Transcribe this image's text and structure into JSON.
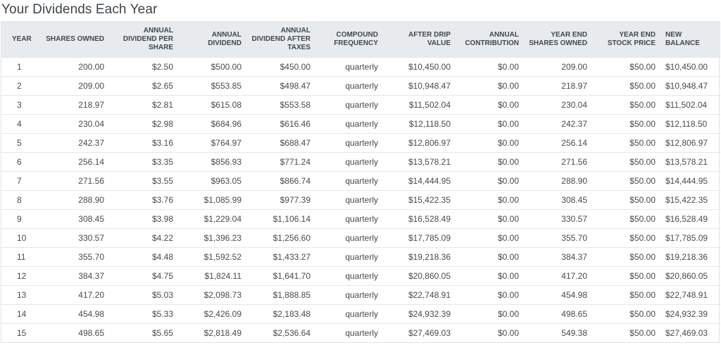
{
  "title": "Your Dividends Each Year",
  "columns": [
    {
      "key": "year",
      "label": "YEAR"
    },
    {
      "key": "shares",
      "label": "SHARES OWNED"
    },
    {
      "key": "div_per_share",
      "label": "ANNUAL DIVIDEND PER SHARE"
    },
    {
      "key": "annual_div",
      "label": "ANNUAL DIVIDEND"
    },
    {
      "key": "after_tax",
      "label": "ANNUAL DIVIDEND AFTER TAXES"
    },
    {
      "key": "compound",
      "label": "COMPOUND FREQUENCY"
    },
    {
      "key": "drip",
      "label": "AFTER DRIP VALUE"
    },
    {
      "key": "contribution",
      "label": "ANNUAL CONTRIBUTION"
    },
    {
      "key": "ye_shares",
      "label": "YEAR END SHARES OWNED"
    },
    {
      "key": "ye_price",
      "label": "YEAR END STOCK PRICE"
    },
    {
      "key": "balance",
      "label": "NEW BALANCE"
    }
  ],
  "rows": [
    [
      "1",
      "200.00",
      "$2.50",
      "$500.00",
      "$450.00",
      "quarterly",
      "$10,450.00",
      "$0.00",
      "209.00",
      "$50.00",
      "$10,450.00"
    ],
    [
      "2",
      "209.00",
      "$2.65",
      "$553.85",
      "$498.47",
      "quarterly",
      "$10,948.47",
      "$0.00",
      "218.97",
      "$50.00",
      "$10,948.47"
    ],
    [
      "3",
      "218.97",
      "$2.81",
      "$615.08",
      "$553.58",
      "quarterly",
      "$11,502.04",
      "$0.00",
      "230.04",
      "$50.00",
      "$11,502.04"
    ],
    [
      "4",
      "230.04",
      "$2.98",
      "$684.96",
      "$616.46",
      "quarterly",
      "$12,118.50",
      "$0.00",
      "242.37",
      "$50.00",
      "$12,118.50"
    ],
    [
      "5",
      "242.37",
      "$3.16",
      "$764.97",
      "$688.47",
      "quarterly",
      "$12,806.97",
      "$0.00",
      "256.14",
      "$50.00",
      "$12,806.97"
    ],
    [
      "6",
      "256.14",
      "$3.35",
      "$856.93",
      "$771.24",
      "quarterly",
      "$13,578.21",
      "$0.00",
      "271.56",
      "$50.00",
      "$13,578.21"
    ],
    [
      "7",
      "271.56",
      "$3.55",
      "$963.05",
      "$866.74",
      "quarterly",
      "$14,444.95",
      "$0.00",
      "288.90",
      "$50.00",
      "$14,444.95"
    ],
    [
      "8",
      "288.90",
      "$3.76",
      "$1,085.99",
      "$977.39",
      "quarterly",
      "$15,422.35",
      "$0.00",
      "308.45",
      "$50.00",
      "$15,422.35"
    ],
    [
      "9",
      "308.45",
      "$3.98",
      "$1,229.04",
      "$1,106.14",
      "quarterly",
      "$16,528.49",
      "$0.00",
      "330.57",
      "$50.00",
      "$16,528.49"
    ],
    [
      "10",
      "330.57",
      "$4.22",
      "$1,396.23",
      "$1,256.60",
      "quarterly",
      "$17,785.09",
      "$0.00",
      "355.70",
      "$50.00",
      "$17,785.09"
    ],
    [
      "11",
      "355.70",
      "$4.48",
      "$1,592.52",
      "$1,433.27",
      "quarterly",
      "$19,218.36",
      "$0.00",
      "384.37",
      "$50.00",
      "$19,218.36"
    ],
    [
      "12",
      "384.37",
      "$4.75",
      "$1,824.11",
      "$1,641.70",
      "quarterly",
      "$20,860.05",
      "$0.00",
      "417.20",
      "$50.00",
      "$20,860.05"
    ],
    [
      "13",
      "417.20",
      "$5.03",
      "$2,098.73",
      "$1,888.85",
      "quarterly",
      "$22,748.91",
      "$0.00",
      "454.98",
      "$50.00",
      "$22,748.91"
    ],
    [
      "14",
      "454.98",
      "$5.33",
      "$2,426.09",
      "$2,183.48",
      "quarterly",
      "$24,932.39",
      "$0.00",
      "498.65",
      "$50.00",
      "$24,932.39"
    ],
    [
      "15",
      "498.65",
      "$5.65",
      "$2,818.49",
      "$2,536.64",
      "quarterly",
      "$27,469.03",
      "$0.00",
      "549.38",
      "$50.00",
      "$27,469.03"
    ]
  ]
}
